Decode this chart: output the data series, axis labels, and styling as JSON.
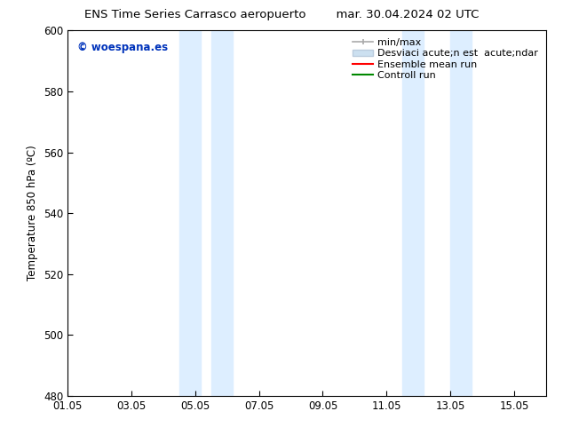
{
  "title_left": "ENS Time Series Carrasco aeropuerto",
  "title_right": "mar. 30.04.2024 02 UTC",
  "ylabel": "Temperature 850 hPa (ºC)",
  "ylim": [
    480,
    600
  ],
  "yticks": [
    480,
    500,
    520,
    540,
    560,
    580,
    600
  ],
  "xtick_labels": [
    "01.05",
    "03.05",
    "05.05",
    "07.05",
    "09.05",
    "11.05",
    "13.05",
    "15.05"
  ],
  "xtick_positions": [
    0,
    2,
    4,
    6,
    8,
    10,
    12,
    14
  ],
  "xlim": [
    0,
    15
  ],
  "shaded_bands": [
    {
      "xstart": 3.5,
      "xend": 4.17
    },
    {
      "xstart": 4.5,
      "xend": 5.17
    },
    {
      "xstart": 10.5,
      "xend": 11.17
    },
    {
      "xstart": 12.0,
      "xend": 12.67
    }
  ],
  "shaded_color": "#ddeeff",
  "background_color": "#ffffff",
  "watermark_text": "© woespana.es",
  "watermark_color": "#0033bb",
  "legend_labels": [
    "min/max",
    "Desviaci acute;n est  acute;ndar",
    "Ensemble mean run",
    "Controll run"
  ],
  "legend_colors": [
    "#aaaaaa",
    "#cce0f0",
    "#ff0000",
    "#008800"
  ],
  "border_color": "#000000",
  "tick_color": "#000000",
  "font_size": 8.5,
  "title_font_size": 9.5
}
